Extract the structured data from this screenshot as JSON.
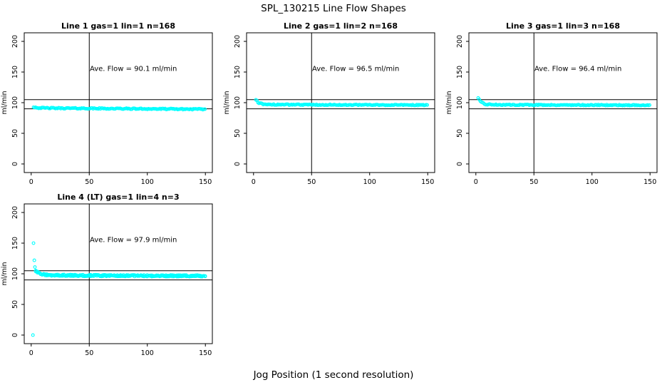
{
  "figure": {
    "title": "SPL_130215  Line Flow Shapes",
    "xlabel": "Jog Position (1 second resolution)"
  },
  "colors": {
    "marker": "#00FFFF",
    "axis": "#000000",
    "background": "#FFFFFF"
  },
  "chart_data": [
    {
      "type": "scatter",
      "title": "Line 1 gas=1 lin=1 n=168",
      "n": 168,
      "annotation": "Ave. Flow =  90.1  ml/min",
      "ave_flow_ml_min": 90.1,
      "ylabel": "ml/min",
      "xlim": [
        -6,
        156
      ],
      "ylim": [
        -14,
        214
      ],
      "xticks": [
        0,
        50,
        100,
        150
      ],
      "yticks": [
        0,
        50,
        100,
        150,
        200
      ],
      "hlines": [
        105,
        90
      ],
      "vlines": [
        50
      ],
      "annotation_xy": [
        88,
        152
      ],
      "marker_color": "#00FFFF",
      "runs": 1,
      "series_x": [
        2,
        150,
        0.9
      ],
      "jitter": 0.9,
      "profile": [
        [
          2,
          93
        ],
        [
          6,
          91.5
        ],
        [
          20,
          91
        ],
        [
          70,
          90.3
        ],
        [
          150,
          89.2
        ]
      ],
      "outlier_points": []
    },
    {
      "type": "scatter",
      "title": "Line 2 gas=1 lin=2 n=168",
      "n": 168,
      "annotation": "Ave. Flow =  96.5  ml/min",
      "ave_flow_ml_min": 96.5,
      "ylabel": "ml/min",
      "xlim": [
        -6,
        156
      ],
      "ylim": [
        -14,
        214
      ],
      "xticks": [
        0,
        50,
        100,
        150
      ],
      "yticks": [
        0,
        50,
        100,
        150,
        200
      ],
      "hlines": [
        105,
        90
      ],
      "vlines": [
        50
      ],
      "annotation_xy": [
        88,
        152
      ],
      "marker_color": "#00FFFF",
      "runs": 1,
      "series_x": [
        2,
        150,
        0.9
      ],
      "jitter": 0.8,
      "profile": [
        [
          2,
          105
        ],
        [
          4,
          100
        ],
        [
          8,
          97.5
        ],
        [
          20,
          96.8
        ],
        [
          150,
          96.0
        ]
      ],
      "outlier_points": []
    },
    {
      "type": "scatter",
      "title": "Line 3 gas=1 lin=3 n=168",
      "n": 168,
      "annotation": "Ave. Flow =  96.4  ml/min",
      "ave_flow_ml_min": 96.4,
      "ylabel": "ml/min",
      "xlim": [
        -6,
        156
      ],
      "ylim": [
        -14,
        214
      ],
      "xticks": [
        0,
        50,
        100,
        150
      ],
      "yticks": [
        0,
        50,
        100,
        150,
        200
      ],
      "hlines": [
        105,
        90
      ],
      "vlines": [
        50
      ],
      "annotation_xy": [
        88,
        152
      ],
      "marker_color": "#00FFFF",
      "runs": 1,
      "series_x": [
        2,
        150,
        0.9
      ],
      "jitter": 0.8,
      "profile": [
        [
          2,
          108
        ],
        [
          4,
          101
        ],
        [
          8,
          97.3
        ],
        [
          20,
          96.5
        ],
        [
          150,
          95.8
        ]
      ],
      "outlier_points": []
    },
    {
      "type": "scatter",
      "title": "Line 4 (LT) gas=1 lin=4 n=3",
      "n": 3,
      "annotation": "Ave. Flow =  97.9  ml/min",
      "ave_flow_ml_min": 97.9,
      "ylabel": "ml/min",
      "xlim": [
        -6,
        156
      ],
      "ylim": [
        -14,
        214
      ],
      "xticks": [
        0,
        50,
        100,
        150
      ],
      "yticks": [
        0,
        50,
        100,
        150,
        200
      ],
      "hlines": [
        105,
        90
      ],
      "vlines": [
        50
      ],
      "annotation_xy": [
        88,
        152
      ],
      "marker_color": "#00FFFF",
      "runs": 3,
      "series_x": [
        4,
        150,
        1.35
      ],
      "jitter": 1.4,
      "profile": [
        [
          4,
          104
        ],
        [
          8,
          99.5
        ],
        [
          15,
          97.5
        ],
        [
          60,
          97
        ],
        [
          150,
          96.5
        ]
      ],
      "outlier_points": [
        [
          1.5,
          0
        ],
        [
          2,
          150
        ],
        [
          2.7,
          122
        ],
        [
          3.2,
          111
        ],
        [
          3.8,
          105
        ]
      ]
    }
  ]
}
